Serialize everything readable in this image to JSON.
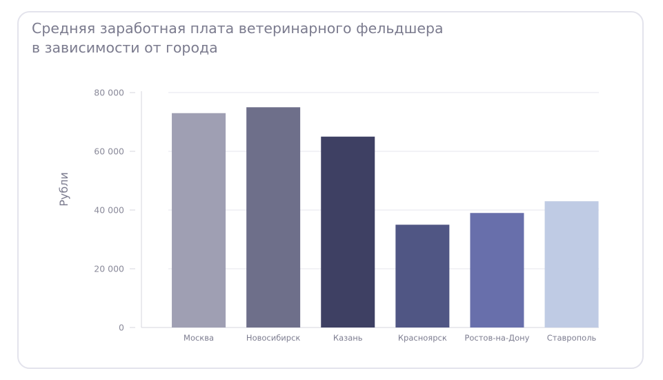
{
  "title_lines": [
    "Средняя заработная плата ветеринарного фельдшера",
    "в зависимости от города"
  ],
  "chart_data": {
    "type": "bar",
    "title": "Средняя заработная плата ветеринарного фельдшера в зависимости от города",
    "xlabel": "",
    "ylabel": "Рубли",
    "categories": [
      "Москва",
      "Новосибирск",
      "Казань",
      "Красноярск",
      "Ростов-на-Дону",
      "Ставрополь"
    ],
    "values": [
      73000,
      75000,
      65000,
      35000,
      39000,
      43000
    ],
    "colors": [
      "#9f9fb3",
      "#6e6f8a",
      "#3e4063",
      "#505684",
      "#686fab",
      "#bfcbe4"
    ],
    "ylim": [
      0,
      80000
    ],
    "yticks": [
      0,
      20000,
      40000,
      60000,
      80000
    ],
    "ytick_labels": [
      "0",
      "20 000",
      "40 000",
      "60 000",
      "80 000"
    ],
    "grid": true,
    "legend": "none"
  }
}
